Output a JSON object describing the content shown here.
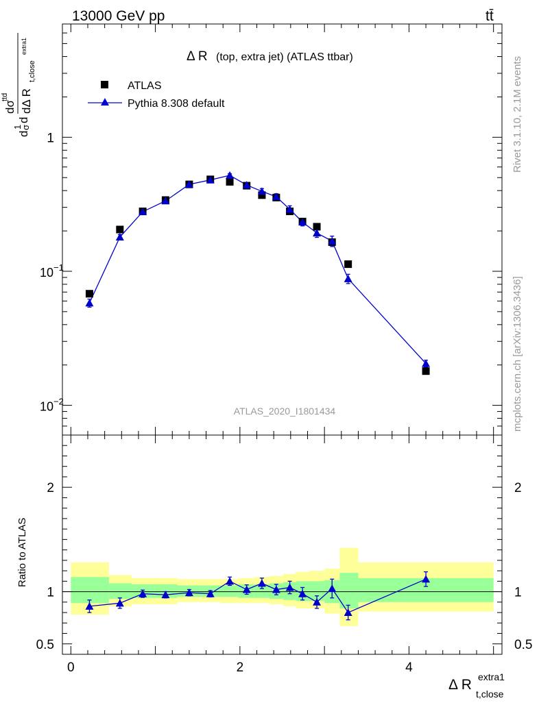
{
  "header": {
    "energy_label": "13000 GeV pp",
    "process_label": "tt̄"
  },
  "side_labels": {
    "rivet": "Rivet 3.1.10,  2.1M events",
    "source": "mcplots.cern.ch [arXiv:1306.3436]"
  },
  "chart_data": [
    {
      "type": "scatter",
      "panel": "main",
      "title": "Δ R (top, extra jet) (ATLAS ttbar)",
      "title_main": "Δ R",
      "title_sub": "(top, extra jet) (ATLAS ttbar)",
      "ylabel": "1/σ dσ^{ttd}/dΔ R_{t,close}^{extra1}",
      "ylabel_parts": {
        "d1": "d",
        "one": "1",
        "sigma": "σ",
        "d2": "d",
        "dsigma": "dσ",
        "sup": "ttd",
        "dDelta": "dΔ R",
        "sub": "t,close",
        "subsup": "extra1"
      },
      "yscale": "log",
      "ylim": [
        0.006,
        7
      ],
      "xlim": [
        -0.1,
        5.1
      ],
      "yticks": [
        {
          "v": 1,
          "mant": "1",
          "exp": ""
        },
        {
          "v": 0.1,
          "mant": "10",
          "exp": "−1"
        },
        {
          "v": 0.01,
          "mant": "10",
          "exp": "−2"
        }
      ],
      "watermark": "ATLAS_2020_I1801434",
      "legend": {
        "position": "top-left",
        "entries": [
          "ATLAS",
          "Pythia 8.308 default"
        ]
      },
      "series": [
        {
          "name": "ATLAS",
          "marker": "square",
          "color": "#000000",
          "x": [
            0.22,
            0.58,
            0.85,
            1.12,
            1.4,
            1.65,
            1.88,
            2.08,
            2.26,
            2.43,
            2.59,
            2.74,
            2.91,
            3.09,
            3.28,
            4.2
          ],
          "y": [
            0.068,
            0.205,
            0.28,
            0.34,
            0.445,
            0.485,
            0.465,
            0.435,
            0.37,
            0.355,
            0.28,
            0.235,
            0.215,
            0.165,
            0.113,
            0.018
          ]
        },
        {
          "name": "Pythia 8.308 default",
          "marker": "triangle",
          "color": "#0000cc",
          "x": [
            0.22,
            0.58,
            0.85,
            1.12,
            1.4,
            1.65,
            1.88,
            2.08,
            2.26,
            2.43,
            2.59,
            2.74,
            2.91,
            3.09,
            3.28,
            4.2
          ],
          "y": [
            0.058,
            0.18,
            0.278,
            0.335,
            0.445,
            0.48,
            0.52,
            0.44,
            0.395,
            0.36,
            0.29,
            0.233,
            0.193,
            0.168,
            0.088,
            0.0205
          ],
          "yerr": [
            0.004,
            0.008,
            0.008,
            0.009,
            0.011,
            0.011,
            0.015,
            0.016,
            0.019,
            0.019,
            0.018,
            0.015,
            0.014,
            0.015,
            0.007,
            0.0012
          ]
        }
      ]
    },
    {
      "type": "scatter",
      "panel": "ratio",
      "ylabel": "Ratio to ATLAS",
      "xlabel": "Δ R_{t,close}^{extra1}",
      "xlabel_parts": {
        "main": "Δ R",
        "sub": "t,close",
        "sup": "extra1"
      },
      "xlim": [
        -0.1,
        5.1
      ],
      "ylim": [
        0.4,
        2.5
      ],
      "xticks": [
        {
          "v": 0,
          "label": "0"
        },
        {
          "v": 2,
          "label": "2"
        },
        {
          "v": 4,
          "label": "4"
        }
      ],
      "yticks": [
        {
          "v": 0.5,
          "label": "0.5"
        },
        {
          "v": 1,
          "label": "1"
        },
        {
          "v": 2,
          "label": "2"
        }
      ],
      "bands": [
        {
          "x0": 0.0,
          "x1": 0.45,
          "y_lo": 0.78,
          "y_hi": 1.28,
          "g_lo": 0.89,
          "g_hi": 1.14
        },
        {
          "x0": 0.45,
          "x1": 0.72,
          "y_lo": 0.86,
          "y_hi": 1.16,
          "g_lo": 0.93,
          "g_hi": 1.08
        },
        {
          "x0": 0.72,
          "x1": 0.98,
          "y_lo": 0.88,
          "y_hi": 1.13,
          "g_lo": 0.94,
          "g_hi": 1.07
        },
        {
          "x0": 0.98,
          "x1": 1.26,
          "y_lo": 0.88,
          "y_hi": 1.13,
          "g_lo": 0.94,
          "g_hi": 1.07
        },
        {
          "x0": 1.26,
          "x1": 1.52,
          "y_lo": 0.9,
          "y_hi": 1.12,
          "g_lo": 0.95,
          "g_hi": 1.06
        },
        {
          "x0": 1.52,
          "x1": 1.77,
          "y_lo": 0.9,
          "y_hi": 1.12,
          "g_lo": 0.95,
          "g_hi": 1.06
        },
        {
          "x0": 1.77,
          "x1": 1.98,
          "y_lo": 0.89,
          "y_hi": 1.12,
          "g_lo": 0.95,
          "g_hi": 1.06
        },
        {
          "x0": 1.98,
          "x1": 2.17,
          "y_lo": 0.89,
          "y_hi": 1.13,
          "g_lo": 0.94,
          "g_hi": 1.07
        },
        {
          "x0": 2.17,
          "x1": 2.35,
          "y_lo": 0.89,
          "y_hi": 1.14,
          "g_lo": 0.94,
          "g_hi": 1.07
        },
        {
          "x0": 2.35,
          "x1": 2.51,
          "y_lo": 0.88,
          "y_hi": 1.15,
          "g_lo": 0.93,
          "g_hi": 1.08
        },
        {
          "x0": 2.51,
          "x1": 2.66,
          "y_lo": 0.86,
          "y_hi": 1.17,
          "g_lo": 0.92,
          "g_hi": 1.09
        },
        {
          "x0": 2.66,
          "x1": 2.82,
          "y_lo": 0.84,
          "y_hi": 1.19,
          "g_lo": 0.91,
          "g_hi": 1.1
        },
        {
          "x0": 2.82,
          "x1": 3.0,
          "y_lo": 0.84,
          "y_hi": 1.2,
          "g_lo": 0.91,
          "g_hi": 1.1
        },
        {
          "x0": 3.0,
          "x1": 3.18,
          "y_lo": 0.79,
          "y_hi": 1.22,
          "g_lo": 0.89,
          "g_hi": 1.11
        },
        {
          "x0": 3.18,
          "x1": 3.4,
          "y_lo": 0.67,
          "y_hi": 1.42,
          "g_lo": 0.84,
          "g_hi": 1.18
        },
        {
          "x0": 3.4,
          "x1": 5.0,
          "y_lo": 0.81,
          "y_hi": 1.28,
          "g_lo": 0.9,
          "g_hi": 1.13
        }
      ],
      "series": [
        {
          "name": "Pythia 8.308 default / ATLAS",
          "marker": "triangle",
          "color": "#0000cc",
          "x": [
            0.22,
            0.58,
            0.85,
            1.12,
            1.4,
            1.65,
            1.88,
            2.08,
            2.26,
            2.43,
            2.59,
            2.74,
            2.91,
            3.09,
            3.28,
            4.2
          ],
          "y": [
            0.86,
            0.89,
            0.98,
            0.97,
            0.99,
            0.98,
            1.1,
            1.02,
            1.08,
            1.02,
            1.04,
            0.98,
            0.9,
            1.03,
            0.8,
            1.12
          ],
          "yerr": [
            0.06,
            0.05,
            0.035,
            0.03,
            0.03,
            0.03,
            0.04,
            0.045,
            0.05,
            0.05,
            0.06,
            0.06,
            0.06,
            0.09,
            0.07,
            0.07
          ]
        }
      ]
    }
  ]
}
